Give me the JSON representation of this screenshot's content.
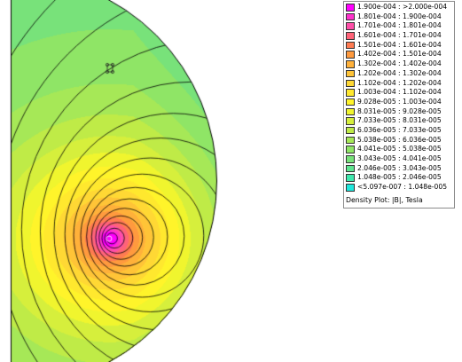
{
  "plot": {
    "title": "Density Plot: |B|, Tesla",
    "colors": {
      "boundary": "#000000",
      "contour": "#000000",
      "background": "#ffffff"
    }
  },
  "legend": {
    "entries": [
      {
        "label": "1.900e-004 : >2.000e-004",
        "color": "#ff00ff"
      },
      {
        "label": "1.801e-004 : 1.900e-004",
        "color": "#ff33cc"
      },
      {
        "label": "1.701e-004 : 1.801e-004",
        "color": "#ff4fa8"
      },
      {
        "label": "1.601e-004 : 1.701e-004",
        "color": "#ff6378"
      },
      {
        "label": "1.501e-004 : 1.601e-004",
        "color": "#ff7b52"
      },
      {
        "label": "1.402e-004 : 1.501e-004",
        "color": "#ff9a3e"
      },
      {
        "label": "1.302e-004 : 1.402e-004",
        "color": "#ffb13a"
      },
      {
        "label": "1.202e-004 : 1.302e-004",
        "color": "#ffc437"
      },
      {
        "label": "1.102e-004 : 1.202e-004",
        "color": "#ffd834"
      },
      {
        "label": "1.003e-004 : 1.102e-004",
        "color": "#ffe82e"
      },
      {
        "label": "9.028e-005 : 1.003e-004",
        "color": "#fff42a"
      },
      {
        "label": "8.031e-005 : 9.028e-005",
        "color": "#f0f52e"
      },
      {
        "label": "7.033e-005 : 8.031e-005",
        "color": "#d6ef3c"
      },
      {
        "label": "6.036e-005 : 7.033e-005",
        "color": "#bfeb47"
      },
      {
        "label": "5.038e-005 : 6.036e-005",
        "color": "#a6e857"
      },
      {
        "label": "4.041e-005 : 5.038e-005",
        "color": "#8fe566"
      },
      {
        "label": "3.043e-005 : 4.041e-005",
        "color": "#78e27a"
      },
      {
        "label": "2.046e-005 : 3.043e-005",
        "color": "#5fe590"
      },
      {
        "label": "1.048e-005 : 2.046e-005",
        "color": "#3fe8ad"
      },
      {
        "label": "<5.097e-007 : 1.048e-005",
        "color": "#1fe7dc"
      }
    ]
  }
}
